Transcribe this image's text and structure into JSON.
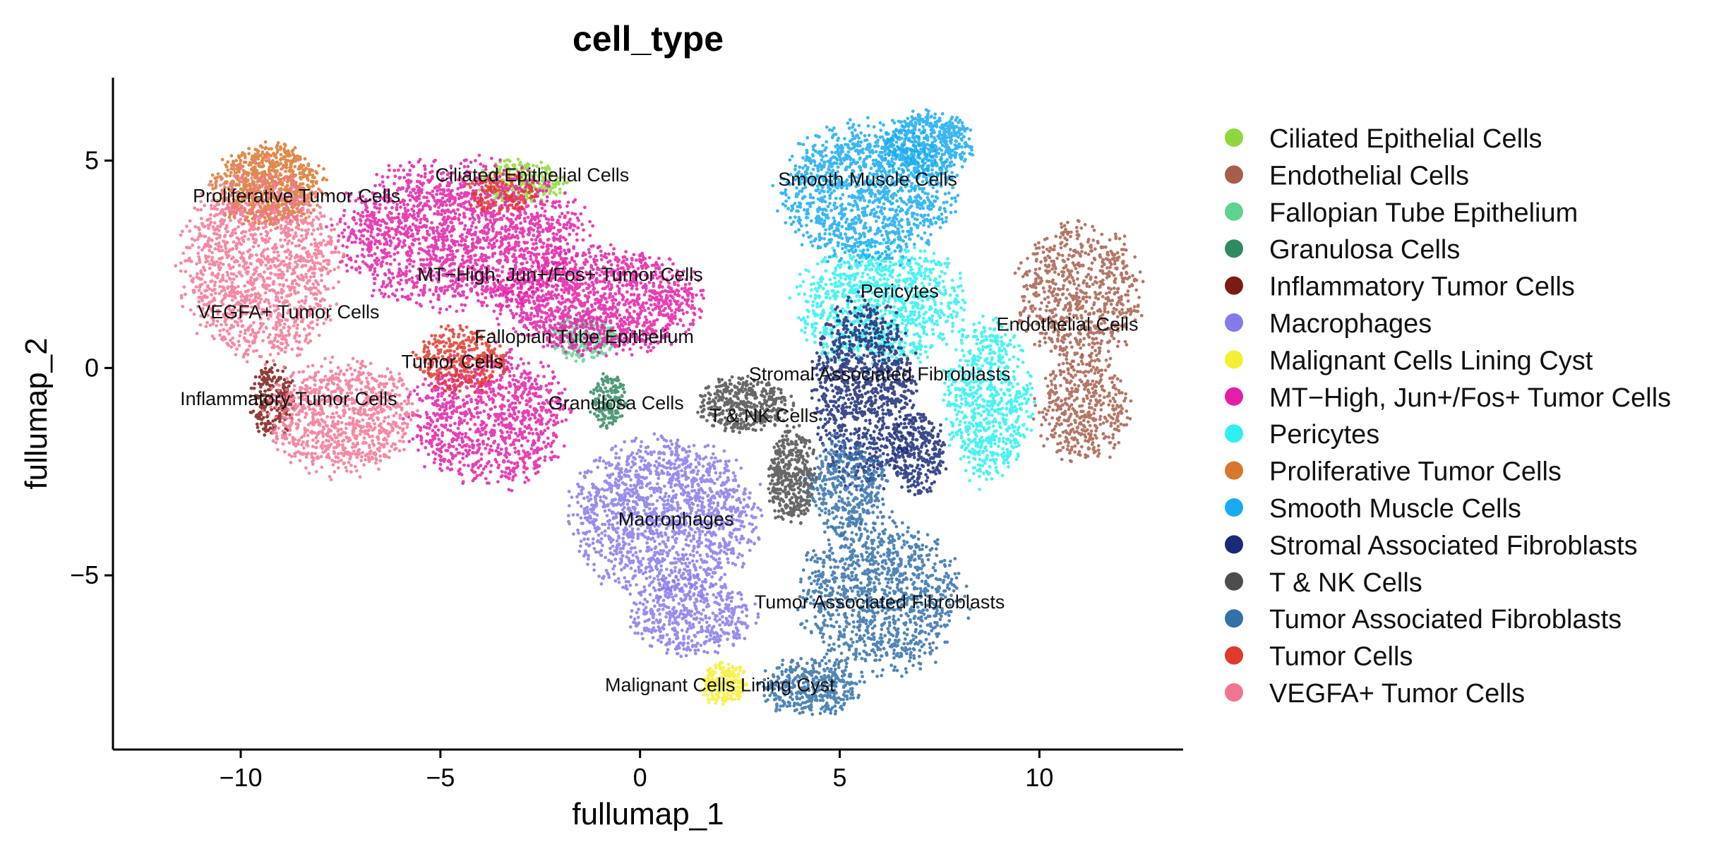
{
  "chart_data": {
    "type": "scatter",
    "title": "cell_type",
    "xlabel": "fullumap_1",
    "ylabel": "fullumap_2",
    "xlim": [
      -13.2,
      13.6
    ],
    "ylim": [
      -9.2,
      7.0
    ],
    "xticks": [
      -10,
      -5,
      0,
      5,
      10
    ],
    "yticks": [
      -5,
      0,
      5
    ],
    "xtick_labels": [
      "−10",
      "−5",
      "0",
      "5",
      "10"
    ],
    "ytick_labels": [
      "−5",
      "0",
      "5"
    ],
    "grid": false,
    "legend_position": "right",
    "series": [
      {
        "name": "Ciliated Epithelial Cells",
        "color": "#8fd63c",
        "label": "Ciliated Epithelial Cells",
        "label_pos": [
          -2.7,
          4.5
        ],
        "blobs": [
          {
            "cx": -3.0,
            "cy": 4.5,
            "rx": 1.2,
            "ry": 0.55,
            "n": 260
          }
        ]
      },
      {
        "name": "Endothelial Cells",
        "color": "#a65f4c",
        "label": "Endothelial Cells",
        "label_pos": [
          10.7,
          0.9
        ],
        "blobs": [
          {
            "cx": 11.0,
            "cy": 1.8,
            "rx": 1.6,
            "ry": 1.7,
            "n": 700
          },
          {
            "cx": 11.1,
            "cy": -1.0,
            "rx": 1.2,
            "ry": 1.3,
            "n": 420
          }
        ]
      },
      {
        "name": "Fallopian Tube Epithelium",
        "color": "#5fd28f",
        "label": "Fallopian Tube Epithelium",
        "label_pos": [
          -1.4,
          0.6
        ],
        "blobs": [
          {
            "cx": -1.4,
            "cy": 0.7,
            "rx": 0.9,
            "ry": 0.55,
            "n": 200
          }
        ]
      },
      {
        "name": "Granulosa Cells",
        "color": "#2f8a62",
        "label": "Granulosa Cells",
        "label_pos": [
          -0.6,
          -1.0
        ],
        "blobs": [
          {
            "cx": -0.8,
            "cy": -0.8,
            "rx": 0.45,
            "ry": 0.7,
            "n": 160
          }
        ]
      },
      {
        "name": "Inflammatory Tumor Cells",
        "color": "#7a1c14",
        "label": "Inflammatory Tumor Cells",
        "label_pos": [
          -8.8,
          -0.9
        ],
        "blobs": [
          {
            "cx": -9.2,
            "cy": -0.8,
            "rx": 0.55,
            "ry": 0.9,
            "n": 220
          }
        ]
      },
      {
        "name": "Macrophages",
        "color": "#857aea",
        "label": "Macrophages",
        "label_pos": [
          0.9,
          -3.8
        ],
        "blobs": [
          {
            "cx": 0.6,
            "cy": -3.6,
            "rx": 2.4,
            "ry": 1.9,
            "n": 1500
          },
          {
            "cx": 1.3,
            "cy": -6.0,
            "rx": 1.6,
            "ry": 1.0,
            "n": 500
          }
        ]
      },
      {
        "name": "Malignant Cells Lining Cyst",
        "color": "#f4ef34",
        "label": "Malignant Cells Lining Cyst",
        "label_pos": [
          2.0,
          -7.8
        ],
        "blobs": [
          {
            "cx": 2.1,
            "cy": -7.6,
            "rx": 0.55,
            "ry": 0.55,
            "n": 220
          }
        ]
      },
      {
        "name": "MT−High, Jun+/Fos+ Tumor Cells",
        "color": "#e21fa6",
        "label": "MT−High, Jun+/Fos+ Tumor Cells",
        "label_pos": [
          -2.0,
          2.1
        ],
        "blobs": [
          {
            "cx": -4.5,
            "cy": 3.2,
            "rx": 3.2,
            "ry": 1.8,
            "n": 1900
          },
          {
            "cx": -1.0,
            "cy": 1.6,
            "rx": 2.6,
            "ry": 1.3,
            "n": 1300
          },
          {
            "cx": -3.8,
            "cy": -1.2,
            "rx": 2.0,
            "ry": 1.7,
            "n": 1000
          }
        ]
      },
      {
        "name": "Pericytes",
        "color": "#2ef0f0",
        "label": "Pericytes",
        "label_pos": [
          6.5,
          1.7
        ],
        "blobs": [
          {
            "cx": 6.0,
            "cy": 1.5,
            "rx": 2.2,
            "ry": 1.5,
            "n": 1000
          },
          {
            "cx": 8.7,
            "cy": -0.8,
            "rx": 1.1,
            "ry": 2.0,
            "n": 700
          }
        ]
      },
      {
        "name": "Proliferative Tumor Cells",
        "color": "#d8772b",
        "label": "Proliferative Tumor Cells",
        "label_pos": [
          -8.6,
          4.0
        ],
        "blobs": [
          {
            "cx": -9.3,
            "cy": 4.4,
            "rx": 1.4,
            "ry": 1.0,
            "n": 800
          }
        ]
      },
      {
        "name": "Smooth Muscle Cells",
        "color": "#19aaf0",
        "label": "Smooth Muscle Cells",
        "label_pos": [
          5.7,
          4.4
        ],
        "blobs": [
          {
            "cx": 5.7,
            "cy": 4.2,
            "rx": 2.2,
            "ry": 1.7,
            "n": 1300
          },
          {
            "cx": 7.2,
            "cy": 5.4,
            "rx": 1.2,
            "ry": 0.8,
            "n": 500
          }
        ]
      },
      {
        "name": "Stromal Associated Fibroblasts",
        "color": "#1b2a78",
        "label": "Stromal Associated Fibroblasts",
        "label_pos": [
          6.0,
          -0.3
        ],
        "blobs": [
          {
            "cx": 5.6,
            "cy": -0.6,
            "rx": 1.3,
            "ry": 2.3,
            "n": 1000
          },
          {
            "cx": 7.0,
            "cy": -2.1,
            "rx": 0.7,
            "ry": 1.0,
            "n": 300
          }
        ]
      },
      {
        "name": "T & NK Cells",
        "color": "#4d4d4d",
        "label": "T & NK Cells",
        "label_pos": [
          3.1,
          -1.3
        ],
        "blobs": [
          {
            "cx": 2.6,
            "cy": -0.9,
            "rx": 1.2,
            "ry": 0.7,
            "n": 400
          },
          {
            "cx": 3.8,
            "cy": -2.6,
            "rx": 0.6,
            "ry": 1.2,
            "n": 400
          }
        ]
      },
      {
        "name": "Tumor Associated Fibroblasts",
        "color": "#3270a8",
        "label": "Tumor Associated Fibroblasts",
        "label_pos": [
          6.0,
          -5.8
        ],
        "blobs": [
          {
            "cx": 6.0,
            "cy": -5.5,
            "rx": 2.1,
            "ry": 1.9,
            "n": 1100
          },
          {
            "cx": 4.3,
            "cy": -7.7,
            "rx": 1.3,
            "ry": 0.7,
            "n": 400
          },
          {
            "cx": 5.2,
            "cy": -2.8,
            "rx": 1.0,
            "ry": 1.2,
            "n": 400
          }
        ]
      },
      {
        "name": "Tumor Cells",
        "color": "#df3a2c",
        "label": "Tumor Cells",
        "label_pos": [
          -4.7,
          0.0
        ],
        "blobs": [
          {
            "cx": -4.5,
            "cy": 0.2,
            "rx": 1.2,
            "ry": 0.8,
            "n": 350
          },
          {
            "cx": -3.5,
            "cy": 4.2,
            "rx": 0.9,
            "ry": 0.5,
            "n": 120
          }
        ]
      },
      {
        "name": "VEGFA+ Tumor Cells",
        "color": "#f27592",
        "label": "VEGFA+ Tumor Cells",
        "label_pos": [
          -8.8,
          1.2
        ],
        "blobs": [
          {
            "cx": -9.5,
            "cy": 2.5,
            "rx": 2.0,
            "ry": 2.4,
            "n": 1400
          },
          {
            "cx": -7.5,
            "cy": -1.2,
            "rx": 1.9,
            "ry": 1.4,
            "n": 900
          }
        ]
      }
    ]
  }
}
